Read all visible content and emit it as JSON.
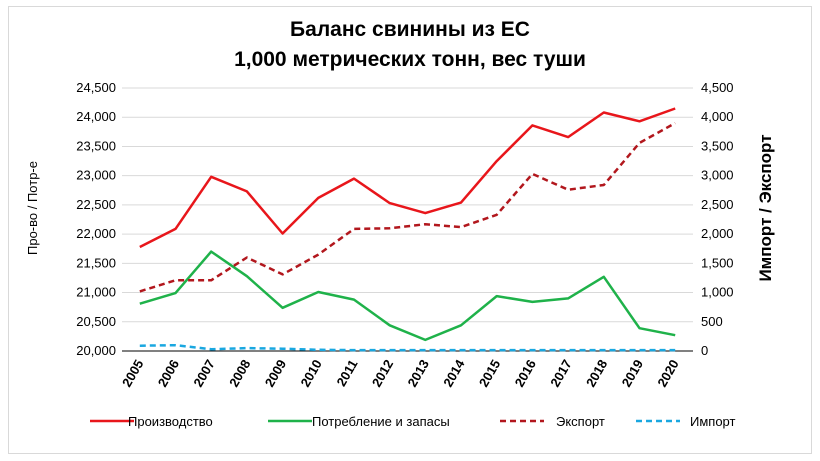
{
  "chart_data": {
    "type": "line",
    "title_line1": "Баланс свинины из ЕС",
    "title_line2": "1,000 метрических тонн, вес туши",
    "ylabel_left": "Про-во / Потр-е",
    "ylabel_right": "Импорт / Экспорт",
    "x": [
      "2005",
      "2006",
      "2007",
      "2008",
      "2009",
      "2010",
      "2011",
      "2012",
      "2013",
      "2014",
      "2015",
      "2016",
      "2017",
      "2018",
      "2019",
      "2020"
    ],
    "y_left_ticks": [
      "20,000",
      "20,500",
      "21,000",
      "21,500",
      "22,000",
      "22,500",
      "23,000",
      "23,500",
      "24,000",
      "24,500"
    ],
    "y_right_ticks": [
      "0",
      "500",
      "1,000",
      "1,500",
      "2,000",
      "2,500",
      "3,000",
      "3,500",
      "4,000",
      "4,500"
    ],
    "ylim_left": [
      20000,
      24500
    ],
    "ylim_right": [
      0,
      4500
    ],
    "grid": true,
    "legend_position": "bottom",
    "series": [
      {
        "name": "Производство",
        "axis": "left",
        "style": "solid",
        "color": "#e8161b",
        "values": [
          21780,
          22090,
          22980,
          22730,
          22010,
          22620,
          22950,
          22530,
          22360,
          22540,
          23250,
          23860,
          23660,
          24080,
          23930,
          24150
        ]
      },
      {
        "name": "Потребление и запасы",
        "axis": "left",
        "style": "solid",
        "color": "#1fb24a",
        "values": [
          20810,
          20990,
          21700,
          21280,
          20740,
          21010,
          20880,
          20440,
          20190,
          20440,
          20940,
          20840,
          20900,
          21270,
          20390,
          20270
        ]
      },
      {
        "name": "Экспорт",
        "axis": "right",
        "style": "dashed",
        "color": "#b2171d",
        "values": [
          1020,
          1210,
          1210,
          1600,
          1310,
          1650,
          2090,
          2100,
          2170,
          2120,
          2330,
          3030,
          2760,
          2840,
          3560,
          3900
        ]
      },
      {
        "name": "Импорт",
        "axis": "right",
        "style": "dashed",
        "color": "#1aa7e0",
        "values": [
          90,
          100,
          30,
          50,
          40,
          20,
          15,
          15,
          15,
          15,
          15,
          15,
          15,
          15,
          15,
          15
        ]
      }
    ]
  }
}
